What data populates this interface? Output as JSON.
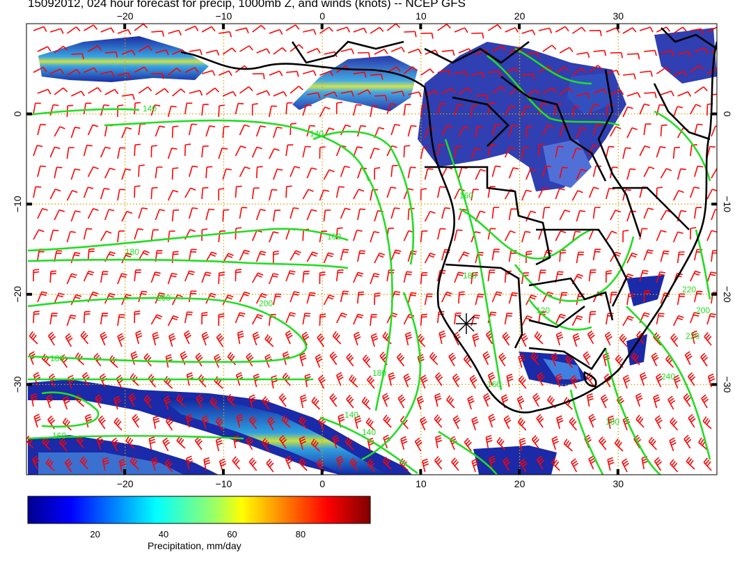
{
  "title": "15092012, 024 hour forecast for precip, 1000mb Z, and winds (knots) -- NCEP GFS",
  "map": {
    "lon_range": [
      -30,
      40
    ],
    "lat_range": [
      -40,
      10
    ],
    "lon_ticks": [
      -20,
      -10,
      0,
      10,
      20,
      30
    ],
    "lat_ticks": [
      0,
      -10,
      -20,
      -30
    ],
    "lon_tick_labels": [
      "−20",
      "−10",
      "0",
      "10",
      "20",
      "30"
    ],
    "lat_tick_labels": [
      "0",
      "−10",
      "−20",
      "−30"
    ],
    "contour_labels": [
      "140",
      "140",
      "160",
      "180",
      "200",
      "200",
      "180",
      "180",
      "180",
      "160",
      "160",
      "140",
      "160",
      "220",
      "220",
      "200",
      "240",
      "180",
      "140",
      "120"
    ],
    "colors": {
      "contour": "#22dd22",
      "barb": "#ff0000",
      "coast": "#000000",
      "grid": "#d8a000",
      "precip_low": "#00008b",
      "precip_high": "#8b0000"
    }
  },
  "colorbar": {
    "label": "Precipitation, mm/day",
    "ticks": [
      "20",
      "40",
      "60",
      "80"
    ],
    "tick_values": [
      20,
      40,
      60,
      80
    ],
    "range": [
      0,
      100
    ],
    "colormap": "jet"
  }
}
